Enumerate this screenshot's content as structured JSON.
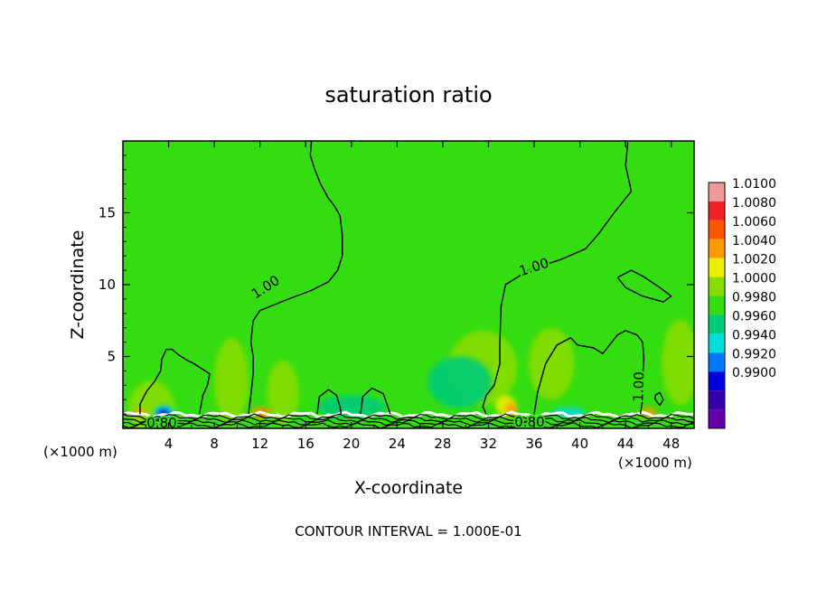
{
  "chart_data": {
    "type": "heatmap",
    "title": "saturation ratio",
    "xlabel": "X-coordinate",
    "ylabel": "Z-coordinate",
    "x_unit_left": "(×1000 m)",
    "x_unit_right": "(×1000 m)",
    "footer": "CONTOUR INTERVAL = 1.000E-01",
    "xlim": [
      0,
      50
    ],
    "ylim": [
      0,
      20
    ],
    "x_ticks": [
      {
        "value": 4,
        "label": "4"
      },
      {
        "value": 8,
        "label": "8"
      },
      {
        "value": 12,
        "label": "12"
      },
      {
        "value": 16,
        "label": "16"
      },
      {
        "value": 20,
        "label": "20"
      },
      {
        "value": 24,
        "label": "24"
      },
      {
        "value": 28,
        "label": "28"
      },
      {
        "value": 32,
        "label": "32"
      },
      {
        "value": 36,
        "label": "36"
      },
      {
        "value": 40,
        "label": "40"
      },
      {
        "value": 44,
        "label": "44"
      },
      {
        "value": 48,
        "label": "48"
      }
    ],
    "y_ticks": [
      {
        "value": 5,
        "label": "5"
      },
      {
        "value": 10,
        "label": "10"
      },
      {
        "value": 15,
        "label": "15"
      }
    ],
    "background_color": "#33dd11",
    "colorbar": [
      {
        "label": "1.0100",
        "color": "#f09999"
      },
      {
        "label": "1.0080",
        "color": "#ee2222"
      },
      {
        "label": "1.0060",
        "color": "#ff5500"
      },
      {
        "label": "1.0040",
        "color": "#ff9900"
      },
      {
        "label": "1.0020",
        "color": "#eeee00"
      },
      {
        "label": "1.0000",
        "color": "#88dd00"
      },
      {
        "label": "0.9980",
        "color": "#33dd11"
      },
      {
        "label": "0.9960",
        "color": "#00cc77"
      },
      {
        "label": "0.9940",
        "color": "#00dddd"
      },
      {
        "label": "0.9920",
        "color": "#0077ff"
      },
      {
        "label": "0.9900",
        "color": "#0000dd"
      },
      {
        "label": "",
        "color": "#3300aa"
      },
      {
        "label": "",
        "color": "#6600aa"
      }
    ],
    "contour_labels": [
      {
        "text": "1.00",
        "x": 12.5,
        "z": 9.8,
        "angle": -33
      },
      {
        "text": "1.00",
        "x": 36.0,
        "z": 11.2,
        "angle": -18
      },
      {
        "text": "1.00",
        "x": 45.2,
        "z": 2.9,
        "angle": -88
      },
      {
        "text": "0.80",
        "x": 3.4,
        "z": 0.35,
        "angle": 0
      },
      {
        "text": "0.80",
        "x": 35.6,
        "z": 0.4,
        "angle": 0
      }
    ],
    "contours": [
      [
        [
          16.5,
          20.0
        ],
        [
          16.4,
          19.0
        ],
        [
          16.8,
          18.0
        ],
        [
          17.3,
          17.0
        ],
        [
          18.0,
          16.0
        ],
        [
          18.5,
          15.5
        ],
        [
          19.0,
          14.8
        ],
        [
          19.2,
          13.5
        ],
        [
          19.2,
          12.0
        ],
        [
          18.8,
          11.0
        ],
        [
          18.0,
          10.2
        ],
        [
          16.5,
          9.6
        ],
        [
          14.5,
          9.0
        ],
        [
          12.0,
          8.2
        ],
        [
          11.4,
          7.5
        ],
        [
          11.2,
          6.0
        ],
        [
          11.4,
          5.0
        ],
        [
          11.4,
          3.8
        ],
        [
          11.2,
          2.3
        ],
        [
          11.0,
          1.0
        ]
      ],
      [
        [
          44.2,
          19.9
        ],
        [
          44.0,
          18.3
        ],
        [
          44.5,
          16.5
        ],
        [
          43.0,
          15.0
        ],
        [
          41.6,
          13.5
        ],
        [
          40.5,
          12.5
        ],
        [
          38.5,
          11.8
        ],
        [
          35.5,
          11.0
        ],
        [
          33.5,
          10.0
        ],
        [
          33.1,
          8.5
        ],
        [
          33.0,
          6.0
        ],
        [
          33.0,
          4.5
        ],
        [
          32.5,
          3.0
        ],
        [
          31.8,
          2.3
        ],
        [
          31.5,
          1.5
        ],
        [
          31.8,
          1.0
        ]
      ],
      [
        [
          36.0,
          1.0
        ],
        [
          36.3,
          2.5
        ],
        [
          37.0,
          4.5
        ],
        [
          38.0,
          5.8
        ],
        [
          39.2,
          6.3
        ],
        [
          39.8,
          5.8
        ],
        [
          41.2,
          5.6
        ],
        [
          42.0,
          5.2
        ],
        [
          42.5,
          5.7
        ],
        [
          43.3,
          6.5
        ],
        [
          44.0,
          6.8
        ],
        [
          45.0,
          6.5
        ],
        [
          45.5,
          6.0
        ],
        [
          45.6,
          4.8
        ],
        [
          45.5,
          3.6
        ],
        [
          45.5,
          2.0
        ],
        [
          45.3,
          1.0
        ]
      ],
      [
        [
          1.5,
          1.0
        ],
        [
          1.5,
          1.7
        ],
        [
          2.1,
          2.6
        ],
        [
          2.8,
          3.3
        ],
        [
          3.3,
          4.0
        ],
        [
          3.4,
          4.8
        ],
        [
          3.8,
          5.5
        ],
        [
          4.3,
          5.5
        ],
        [
          4.9,
          5.1
        ],
        [
          5.5,
          4.8
        ],
        [
          6.2,
          4.5
        ],
        [
          7.2,
          4.0
        ],
        [
          7.6,
          3.8
        ],
        [
          7.4,
          3.0
        ],
        [
          7.0,
          2.3
        ],
        [
          6.7,
          1.0
        ]
      ],
      [
        [
          17.0,
          1.0
        ],
        [
          17.2,
          2.2
        ],
        [
          18.0,
          2.7
        ],
        [
          18.7,
          2.3
        ],
        [
          19.0,
          1.5
        ],
        [
          19.1,
          1.0
        ]
      ],
      [
        [
          20.8,
          1.0
        ],
        [
          21.0,
          2.2
        ],
        [
          21.8,
          2.8
        ],
        [
          22.8,
          2.4
        ],
        [
          23.2,
          1.5
        ],
        [
          23.4,
          1.0
        ]
      ],
      [
        [
          46.6,
          2.3
        ],
        [
          47.0,
          2.5
        ],
        [
          47.3,
          2.0
        ],
        [
          47.0,
          1.6
        ],
        [
          46.6,
          2.0
        ],
        [
          46.6,
          2.3
        ]
      ],
      [
        [
          43.3,
          10.5
        ],
        [
          44.5,
          11.0
        ],
        [
          45.5,
          10.6
        ],
        [
          47.0,
          9.8
        ],
        [
          48.0,
          9.2
        ],
        [
          47.3,
          8.8
        ],
        [
          45.5,
          9.2
        ],
        [
          44.0,
          9.8
        ],
        [
          43.3,
          10.5
        ]
      ]
    ],
    "shading_blobs": [
      {
        "x": 2.5,
        "z": 1.5,
        "rx": 2.0,
        "rz": 1.8,
        "color": "#88dd00"
      },
      {
        "x": 9.5,
        "z": 3.3,
        "rx": 1.5,
        "rz": 3.0,
        "color": "#88dd00"
      },
      {
        "x": 14.0,
        "z": 2.5,
        "rx": 1.4,
        "rz": 2.2,
        "color": "#88dd00"
      },
      {
        "x": 31.5,
        "z": 4.2,
        "rx": 3.0,
        "rz": 2.6,
        "color": "#88dd00"
      },
      {
        "x": 37.5,
        "z": 4.5,
        "rx": 2.0,
        "rz": 2.5,
        "color": "#88dd00"
      },
      {
        "x": 48.8,
        "z": 4.6,
        "rx": 1.6,
        "rz": 3.0,
        "color": "#88dd00"
      },
      {
        "x": 29.5,
        "z": 3.2,
        "rx": 2.8,
        "rz": 1.8,
        "color": "#00cc77"
      },
      {
        "x": 20.0,
        "z": 1.5,
        "rx": 3.0,
        "rz": 0.8,
        "color": "#00cc77"
      },
      {
        "x": 33.5,
        "z": 1.6,
        "rx": 0.9,
        "rz": 0.7,
        "color": "#eeee00"
      },
      {
        "x": 34.0,
        "z": 1.3,
        "rx": 0.5,
        "rz": 0.5,
        "color": "#ff9900"
      },
      {
        "x": 1.5,
        "z": 1.1,
        "rx": 0.5,
        "rz": 0.3,
        "color": "#ff9900"
      },
      {
        "x": 12.1,
        "z": 1.1,
        "rx": 0.9,
        "rz": 0.35,
        "color": "#ff9900"
      },
      {
        "x": 12.2,
        "z": 1.05,
        "rx": 0.4,
        "rz": 0.2,
        "color": "#ff5500"
      },
      {
        "x": 46.0,
        "z": 1.1,
        "rx": 0.7,
        "rz": 0.35,
        "color": "#ff9900"
      },
      {
        "x": 3.6,
        "z": 1.0,
        "rx": 0.9,
        "rz": 0.6,
        "color": "#00dddd"
      },
      {
        "x": 3.6,
        "z": 1.0,
        "rx": 0.6,
        "rz": 0.4,
        "color": "#0077ff"
      },
      {
        "x": 3.5,
        "z": 0.95,
        "rx": 0.35,
        "rz": 0.3,
        "color": "#0000dd"
      },
      {
        "x": 39.0,
        "z": 1.1,
        "rx": 1.5,
        "rz": 0.35,
        "color": "#00dddd"
      }
    ],
    "ground_bands": [
      {
        "z": 0.95,
        "color": "#ffffff"
      },
      {
        "z": 0.8,
        "color": "#000000"
      },
      {
        "z": 0.6,
        "color": "#000000"
      },
      {
        "z": 0.4,
        "color": "#000000"
      },
      {
        "z": 0.2,
        "color": "#000000"
      }
    ]
  }
}
